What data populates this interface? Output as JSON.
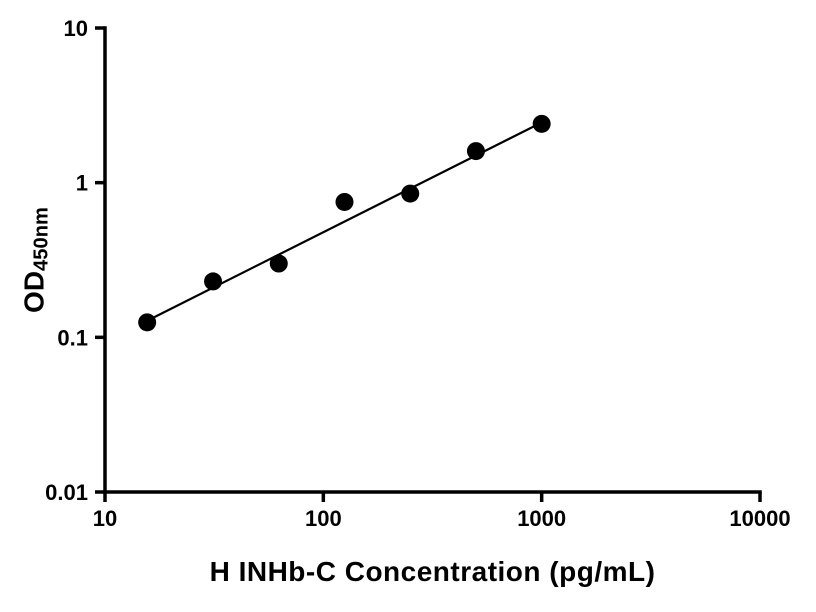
{
  "chart_data": {
    "type": "scatter",
    "title": "",
    "xlabel": "H INHb-C Concentration (pg/mL)",
    "ylabel_main": "OD",
    "ylabel_sub": "450nm",
    "x_scale": "log",
    "y_scale": "log",
    "xlim": [
      10,
      10000
    ],
    "ylim": [
      0.01,
      10
    ],
    "x_ticks": {
      "values": [
        10,
        100,
        1000,
        10000
      ],
      "labels": [
        "10",
        "100",
        "1000",
        "10000"
      ]
    },
    "y_ticks": {
      "values": [
        0.01,
        0.1,
        1,
        10
      ],
      "labels": [
        "0.01",
        "0.1",
        "1",
        "10"
      ]
    },
    "series": [
      {
        "name": "standard-curve-points",
        "x": [
          15.6,
          31.25,
          62.5,
          125,
          250,
          500,
          1000
        ],
        "y": [
          0.125,
          0.23,
          0.3,
          0.75,
          0.85,
          1.6,
          2.4
        ]
      }
    ],
    "fit_line": {
      "x": [
        15.6,
        1000
      ],
      "y": [
        0.128,
        2.45
      ]
    },
    "colors": {
      "points": "#000000",
      "line": "#000000",
      "axis": "#000000",
      "background": "#ffffff",
      "text": "#000000"
    },
    "grid": false,
    "legend": false
  }
}
